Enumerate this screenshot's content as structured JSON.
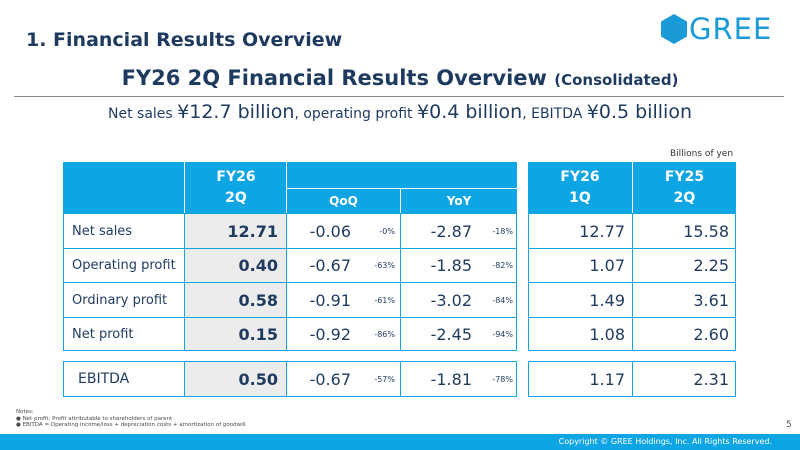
{
  "section_title": "1. Financial Results Overview",
  "logo_text": "GREE",
  "title_main": "FY26 2Q Financial Results Overview",
  "title_sub": "(Consolidated)",
  "summary": {
    "p1": "Net sales ",
    "v1": "¥12.7 billion",
    "p2": ", operating profit ",
    "v2": "¥0.4 billion",
    "p3": ", EBITDA ",
    "v3": "¥0.5 billion"
  },
  "unit_note": "Billions of yen",
  "table": {
    "col_fy26_2q": [
      "FY26",
      "2Q"
    ],
    "col_qoq": "QoQ",
    "col_yoy": "YoY",
    "col_fy26_1q": [
      "FY26",
      "1Q"
    ],
    "col_fy25_2q": [
      "FY25",
      "2Q"
    ],
    "rows": [
      {
        "label": "Net sales",
        "v2q": "12.71",
        "qoq": "-0.06",
        "qoq_pct": "-0%",
        "yoy": "-2.87",
        "yoy_pct": "-18%",
        "v1q": "12.77",
        "vprev": "15.58"
      },
      {
        "label": "Operating profit",
        "v2q": "0.40",
        "qoq": "-0.67",
        "qoq_pct": "-63%",
        "yoy": "-1.85",
        "yoy_pct": "-82%",
        "v1q": "1.07",
        "vprev": "2.25"
      },
      {
        "label": "Ordinary profit",
        "v2q": "0.58",
        "qoq": "-0.91",
        "qoq_pct": "-61%",
        "yoy": "-3.02",
        "yoy_pct": "-84%",
        "v1q": "1.49",
        "vprev": "3.61"
      },
      {
        "label": "Net profit",
        "v2q": "0.15",
        "qoq": "-0.92",
        "qoq_pct": "-86%",
        "yoy": "-2.45",
        "yoy_pct": "-94%",
        "v1q": "1.08",
        "vprev": "2.60"
      }
    ],
    "ebitda": {
      "label": "EBITDA",
      "v2q": "0.50",
      "qoq": "-0.67",
      "qoq_pct": "-57%",
      "yoy": "-1.81",
      "yoy_pct": "-78%",
      "v1q": "1.17",
      "vprev": "2.31"
    }
  },
  "notes": {
    "heading": "Notes:",
    "items": [
      "Net profit: Profit attributable to shareholders of parent",
      "EBITDA = Operating income/loss + depreciation costs + amortization of goodwill"
    ]
  },
  "page_number": "5",
  "copyright": "Copyright © GREE Holdings, Inc. All Rights Reserved.",
  "colors": {
    "accent": "#0ea5e4",
    "navy": "#1e3a5f",
    "shade": "#ececec"
  }
}
